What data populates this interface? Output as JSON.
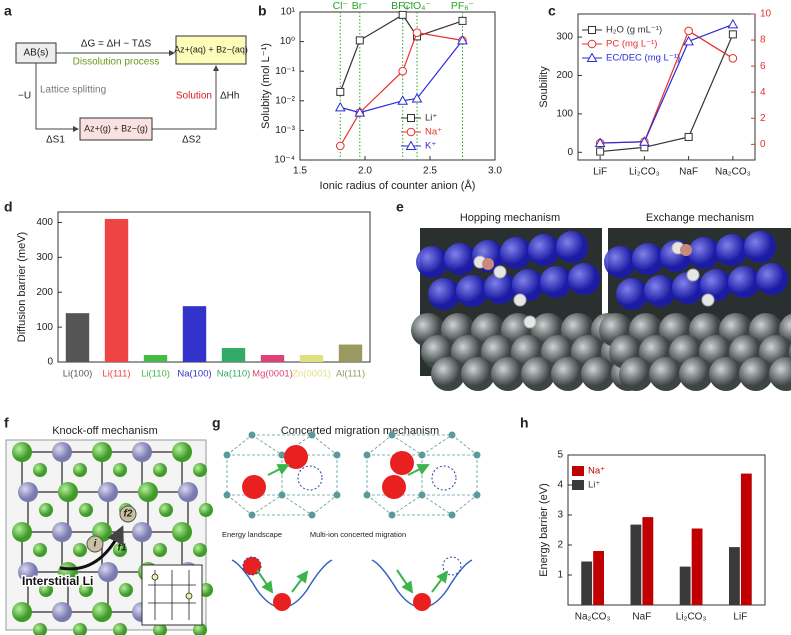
{
  "panel_labels": [
    "a",
    "b",
    "c",
    "d",
    "e",
    "f",
    "g",
    "h"
  ],
  "diagram_a": {
    "reactant": "AB(s)",
    "product_aq": "Az+(aq) + Bz−(aq)",
    "product_g": "Az+(g) + Bz−(g)",
    "equation": "ΔG = ΔH − TΔS",
    "dissolution": "Dissolution process",
    "lattice_energy": "−U",
    "lattice": "Lattice splitting",
    "entropy_1": "ΔS1",
    "solution": "Solution",
    "hydration": "ΔHh",
    "entropy_2": "ΔS2"
  },
  "chart_data": [
    {
      "type": "line",
      "xlabel": "Ionic radius of counter anion (Å)",
      "ylabel": "Solubity (mol L⁻¹)",
      "x": [
        1.81,
        1.96,
        2.29,
        2.4,
        2.75
      ],
      "anions": [
        "Cl⁻",
        "Br⁻",
        "BF₄⁻",
        "ClO₄⁻",
        "PF₆⁻"
      ],
      "anion_color": "#2ca02c",
      "xlim": [
        1.5,
        3
      ],
      "xticks": [
        1.5,
        {
          "value": 2,
          "label": "2.0"
        },
        2.5,
        {
          "value": 3,
          "label": "3.0"
        }
      ],
      "ylim": [
        0.0001,
        10
      ],
      "log_y": true,
      "yticks": [
        {
          "value": 0.0001,
          "label": "10⁻⁴"
        },
        {
          "value": 0.001,
          "label": "10⁻³"
        },
        {
          "value": 0.01,
          "label": "10⁻²"
        },
        {
          "value": 0.1,
          "label": "10⁻¹"
        },
        {
          "value": 1,
          "label": "10⁰"
        },
        {
          "value": 10,
          "label": "10¹"
        }
      ],
      "legend": "lower right",
      "series": [
        {
          "name": "Li⁺",
          "color": "#333333",
          "marker": "square",
          "values": [
            0.02,
            1.1,
            8,
            1.5,
            5
          ]
        },
        {
          "name": "Na⁺",
          "color": "#e8302a",
          "marker": "circle",
          "values": [
            0.0003,
            0.004,
            0.1,
            2,
            1.1
          ]
        },
        {
          "name": "K⁺",
          "color": "#2b2bd9",
          "marker": "triangle",
          "values": [
            0.006,
            0.004,
            0.01,
            0.012,
            1.1
          ]
        }
      ]
    },
    {
      "type": "line",
      "ylabel": "Soubility",
      "categories": [
        "LiF",
        "Li₂CO₃",
        "NaF",
        "Na₂CO₃"
      ],
      "ylim": [
        -20,
        360
      ],
      "yticks": [
        0,
        100,
        200,
        300
      ],
      "y2lim": [
        -1.2,
        10
      ],
      "y2ticks": [
        0,
        2,
        4,
        6,
        8,
        10
      ],
      "y2color": "#e8302a",
      "legend": "upper left",
      "series": [
        {
          "name": "H₂O (g mL⁻¹)",
          "color": "#333333",
          "marker": "square",
          "values": [
            2,
            13,
            40,
            307
          ]
        },
        {
          "name": "PC (mg L⁻¹)",
          "color": "#e8302a",
          "marker": "circle",
          "axis": "y2",
          "values": [
            0.1,
            0.2,
            8.7,
            6.6
          ]
        },
        {
          "name": "EC/DEC (mg L⁻¹)",
          "color": "#2b2bd9",
          "marker": "triangle",
          "axis": "y2",
          "values": [
            0.1,
            0.2,
            7.9,
            9.2
          ]
        }
      ]
    },
    {
      "type": "bar",
      "ylabel": "Diffusion barrier (meV)",
      "categories": [
        "Li(100)",
        "Li(111)",
        "Li(110)",
        "Na(100)",
        "Na(110)",
        "Mg(0001)",
        "Zn(0001)",
        "Al(111)"
      ],
      "values": [
        140,
        410,
        20,
        160,
        40,
        20,
        20,
        50
      ],
      "colors": [
        "#555555",
        "#ee4444",
        "#44bb44",
        "#3333cc",
        "#33aa66",
        "#e0407a",
        "#e0e080",
        "#9a9a60"
      ],
      "ylim": [
        0,
        430
      ],
      "yticks": [
        0,
        100,
        200,
        300,
        400
      ]
    },
    {
      "type": "grouped_bar",
      "ylabel": "Energy barrier (eV)",
      "categories": [
        "Na₂CO₃",
        "NaF",
        "Li₂CO₃",
        "LiF"
      ],
      "legend": "upper left",
      "series": [
        {
          "name": "Na⁺",
          "color": "#c00000",
          "values": [
            1.8,
            2.93,
            2.55,
            4.38
          ]
        },
        {
          "name": "Li⁺",
          "color": "#3a3a3a",
          "values": [
            1.45,
            2.68,
            1.28,
            1.93
          ]
        }
      ],
      "ylim": [
        0,
        5
      ],
      "yticks": [
        1,
        2,
        3,
        4,
        5
      ]
    }
  ],
  "panel_e": {
    "hopping": "Hopping mechanism",
    "exchange": "Exchange mechanism"
  },
  "panel_f": {
    "title": "Knock-off mechanism",
    "interstitial": "Interstitial Li",
    "site_i": "i",
    "site_f1": "f1",
    "site_f2": "f2"
  },
  "panel_g": {
    "title": "Concerted migration mechanism",
    "energy": "Energy landscape",
    "multi": "Multi-ion concerted migration"
  }
}
